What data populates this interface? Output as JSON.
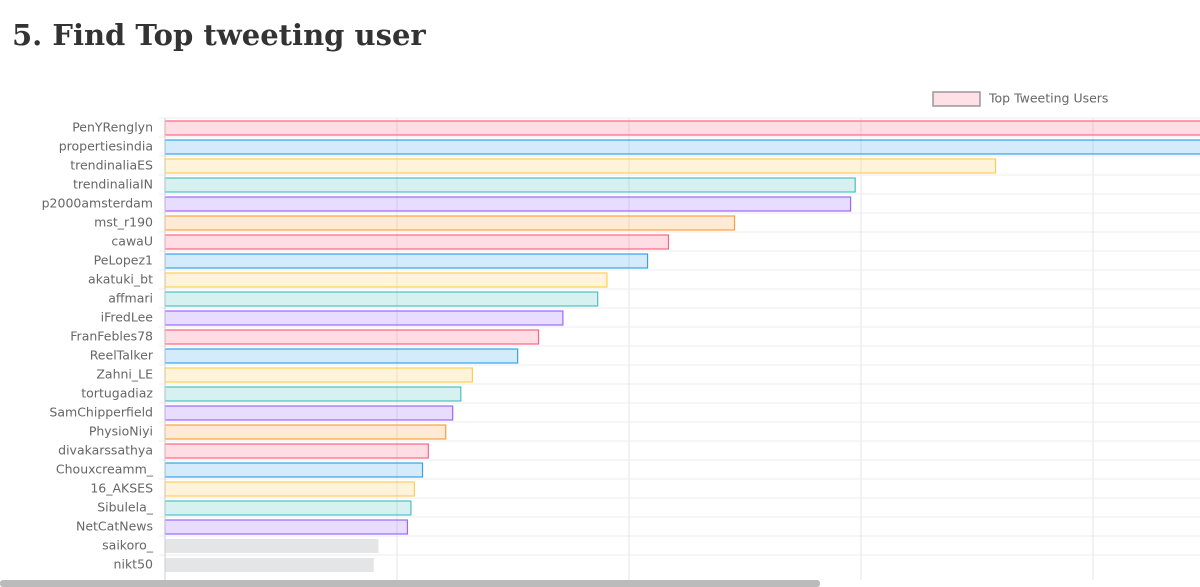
{
  "heading": "5. Find Top tweeting user",
  "chart_data": {
    "type": "hbar",
    "legend": "Top Tweeting Users",
    "legend_color": "#ff6384",
    "categories": [
      "PenYRenglyn",
      "propertiesindia",
      "trendinaliaES",
      "trendinaliaIN",
      "p2000amsterdam",
      "mst_r190",
      "cawaU",
      "PeLopez1",
      "akatuki_bt",
      "affmari",
      "iFredLee",
      "FranFebles78",
      "ReelTalker",
      "Zahni_LE",
      "tortugadiaz",
      "SamChipperfield",
      "PhysioNiyi",
      "divakarssathya",
      "Chouxcreamm_",
      "16_AKSES",
      "Sibulela_",
      "NetCatNews",
      "saikoro_",
      "nikt50"
    ],
    "values": [
      95,
      94,
      71.6,
      59.5,
      59.1,
      49.1,
      43.4,
      41.6,
      38.1,
      37.3,
      34.3,
      32.2,
      30.4,
      26.5,
      25.5,
      24.8,
      24.2,
      22.7,
      22.2,
      21.5,
      21.2,
      20.9,
      18.4,
      18.0
    ],
    "colors": [
      "#ff6384",
      "#36a2eb",
      "#ffce56",
      "#4bc0c0",
      "#9966ff",
      "#ff9f40",
      "#ff6384",
      "#36a2eb",
      "#ffce56",
      "#4bc0c0",
      "#9966ff",
      "#ff6384",
      "#36a2eb",
      "#ffce56",
      "#4bc0c0",
      "#9966ff",
      "#ff9f40",
      "#ff6384",
      "#36a2eb",
      "#ffce56",
      "#4bc0c0",
      "#9966ff",
      "#c9cbcf",
      "#c9cbcf"
    ],
    "xlim": [
      0,
      100
    ],
    "xticks": [
      0,
      20,
      40,
      60,
      80,
      100
    ],
    "grid": true
  }
}
